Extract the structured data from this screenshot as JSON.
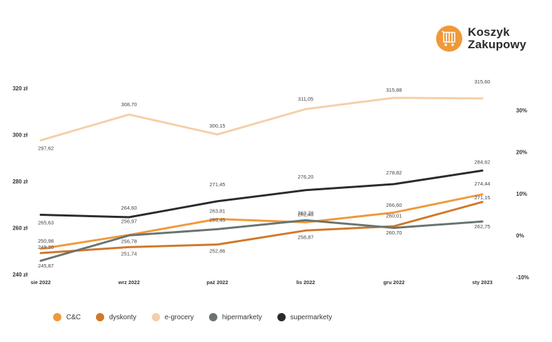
{
  "brand": {
    "line1": "Koszyk",
    "line2": "Zakupowy",
    "accent": "#f0993a",
    "icon": "shopping-cart-icon"
  },
  "chart_data": {
    "type": "line",
    "categories": [
      "sie 2022",
      "wrz 2022",
      "paź 2022",
      "lis 2022",
      "gru 2022",
      "sty 2023"
    ],
    "y_left": {
      "ticks": [
        240,
        260,
        280,
        300,
        320
      ],
      "tick_labels": [
        "240 zł",
        "260 zł",
        "280 zł",
        "300 zł",
        "320 zł"
      ],
      "range": [
        240,
        320
      ]
    },
    "y_right": {
      "ticks": [
        -10,
        0,
        10,
        20,
        30
      ],
      "tick_labels": [
        "-10%",
        "0%",
        "10%",
        "20%",
        "30%"
      ],
      "range": [
        -10,
        30
      ]
    },
    "grid": false,
    "legend_position": "bottom-left",
    "series": [
      {
        "name": "C&C",
        "color": "#f0993a",
        "values": [
          250.98,
          256.97,
          263.81,
          262.4,
          266.6,
          274.44
        ],
        "labels": [
          "250,98",
          "256,97",
          "263,81",
          "262,40",
          "266,60",
          "274,44"
        ]
      },
      {
        "name": "dyskonty",
        "color": "#d2772a",
        "values": [
          249.2,
          251.74,
          252.86,
          258.87,
          260.7,
          271.15
        ],
        "labels": [
          "249,20",
          "251,74",
          "252,86",
          "258,87",
          "260,70",
          "271,15"
        ]
      },
      {
        "name": "e-grocery",
        "color": "#f5cfa9",
        "values": [
          297.62,
          308.7,
          300.15,
          311.05,
          315.88,
          315.6
        ],
        "labels": [
          "297,62",
          "308,70",
          "300,15",
          "311,05",
          "315,88",
          "315,60"
        ]
      },
      {
        "name": "hipermarkety",
        "color": "#69746f",
        "values": [
          245.87,
          256.78,
          259.45,
          263.28,
          260.01,
          262.75
        ],
        "labels": [
          "245,87",
          "256,78",
          "259,45",
          "263,28",
          "260,01",
          "262,75"
        ]
      },
      {
        "name": "supermarkety",
        "color": "#2b2b2b",
        "values": [
          265.63,
          264.6,
          271.45,
          276.2,
          278.82,
          284.62
        ],
        "labels": [
          "265,63",
          "264,60",
          "271,45",
          "276,20",
          "278,82",
          "284,62"
        ]
      }
    ]
  }
}
